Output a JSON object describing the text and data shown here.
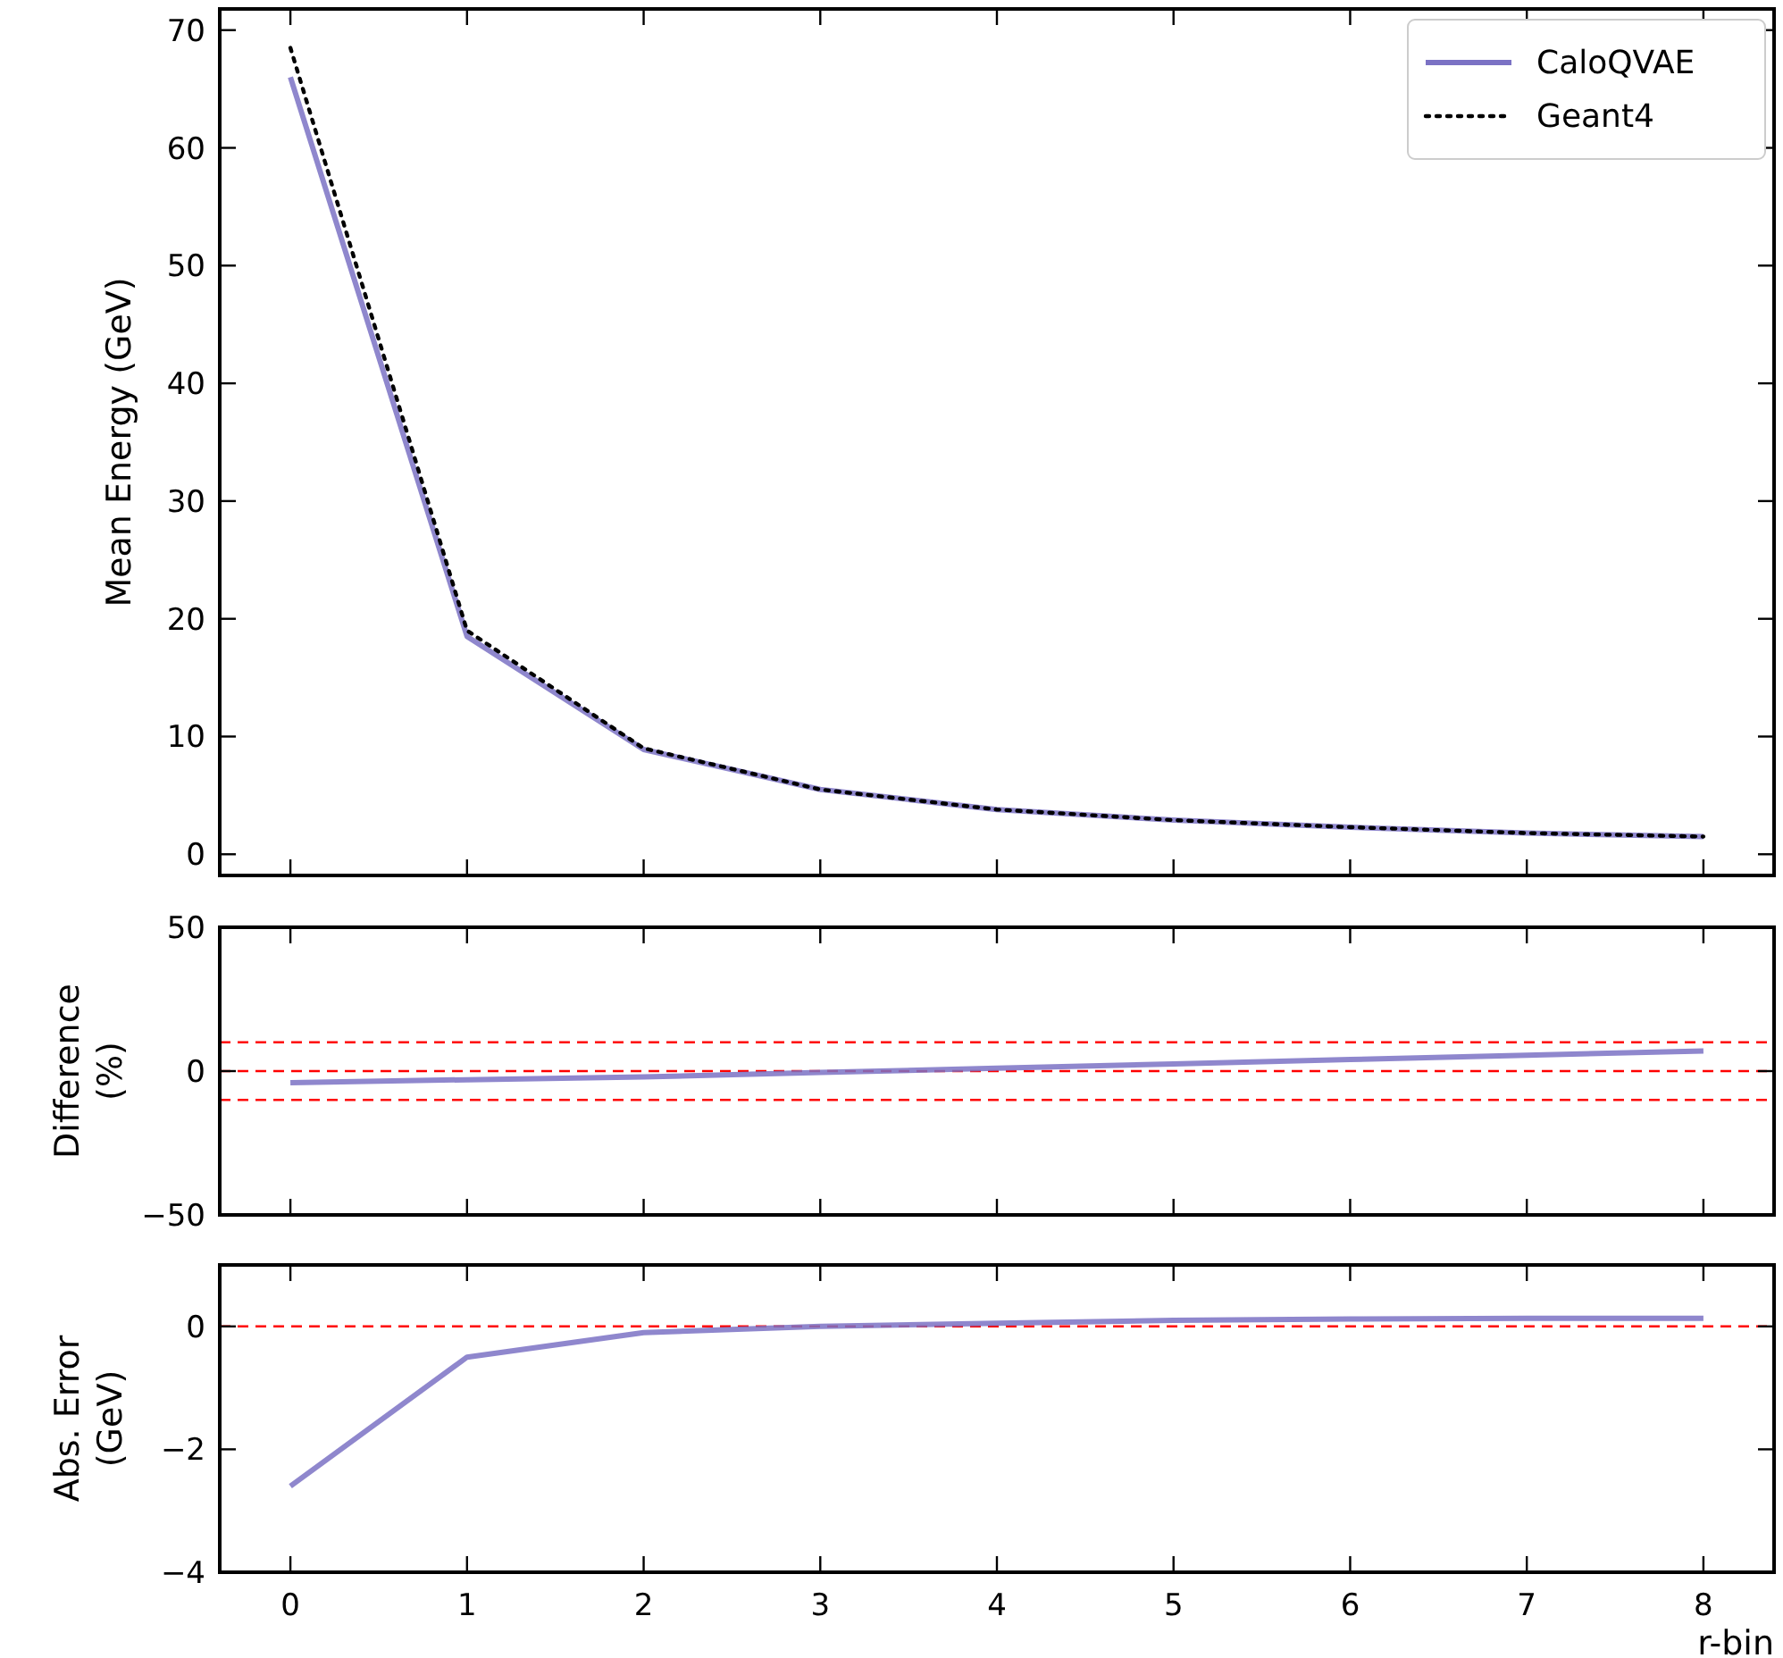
{
  "chart_data": [
    {
      "type": "line",
      "ylabel": "Mean Energy (GeV)",
      "x": [
        0,
        1,
        2,
        3,
        4,
        5,
        6,
        7,
        8
      ],
      "xlim": [
        -0.4,
        8.4
      ],
      "xticks": [
        0,
        1,
        2,
        3,
        4,
        5,
        6,
        7,
        8
      ],
      "ylim": [
        -1.8,
        71.8
      ],
      "yticks": [
        0,
        10,
        20,
        30,
        40,
        50,
        60,
        70
      ],
      "tick_labels": "y",
      "legend": "top right",
      "grid": false,
      "series": [
        {
          "name": "CaloQVAE",
          "color": "#7b72c4",
          "line_style": "solid",
          "values": [
            66,
            18.5,
            8.9,
            5.5,
            3.8,
            2.9,
            2.3,
            1.8,
            1.5
          ]
        },
        {
          "name": "Geant4",
          "color": "#000000",
          "line_style": "dotted",
          "values": [
            68.5,
            19,
            9.0,
            5.5,
            3.8,
            2.9,
            2.3,
            1.8,
            1.5
          ]
        }
      ]
    },
    {
      "type": "line",
      "ylabel": "Difference\n(%)",
      "x": [
        0,
        1,
        2,
        3,
        4,
        5,
        6,
        7,
        8
      ],
      "xlim": [
        -0.4,
        8.4
      ],
      "xticks": [
        0,
        1,
        2,
        3,
        4,
        5,
        6,
        7,
        8
      ],
      "ylim": [
        -50,
        50
      ],
      "yticks": [
        {
          "value": -50,
          "label": "−50"
        },
        0,
        50
      ],
      "tick_labels": "y",
      "grid": false,
      "series": [
        {
          "color": "#7b72c4",
          "line_style": "solid",
          "values": [
            -4,
            -3,
            -2,
            -0.5,
            1,
            2.5,
            4,
            5.5,
            7
          ]
        }
      ],
      "ref_lines": [
        {
          "axis": "y",
          "value": 10,
          "color": "#ff0000",
          "line_style": "dashed"
        },
        {
          "axis": "y",
          "value": 0,
          "color": "#ff0000",
          "line_style": "dashed"
        },
        {
          "axis": "y",
          "value": -10,
          "color": "#ff0000",
          "line_style": "dashed"
        }
      ]
    },
    {
      "type": "line",
      "ylabel": "Abs. Error\n(GeV)",
      "xlabel": "r-bin",
      "x": [
        0,
        1,
        2,
        3,
        4,
        5,
        6,
        7,
        8
      ],
      "xlim": [
        -0.4,
        8.4
      ],
      "xticks": [
        0,
        1,
        2,
        3,
        4,
        5,
        6,
        7,
        8
      ],
      "ylim": [
        -4,
        1
      ],
      "yticks": [
        {
          "value": -4,
          "label": "−4"
        },
        {
          "value": -2,
          "label": "−2"
        },
        0
      ],
      "grid": false,
      "series": [
        {
          "color": "#7b72c4",
          "line_style": "solid",
          "values": [
            -2.6,
            -0.5,
            -0.1,
            0,
            0.05,
            0.1,
            0.12,
            0.13,
            0.13
          ]
        }
      ],
      "ref_lines": [
        {
          "axis": "y",
          "value": 0,
          "color": "#ff0000",
          "line_style": "dashed"
        }
      ]
    }
  ]
}
